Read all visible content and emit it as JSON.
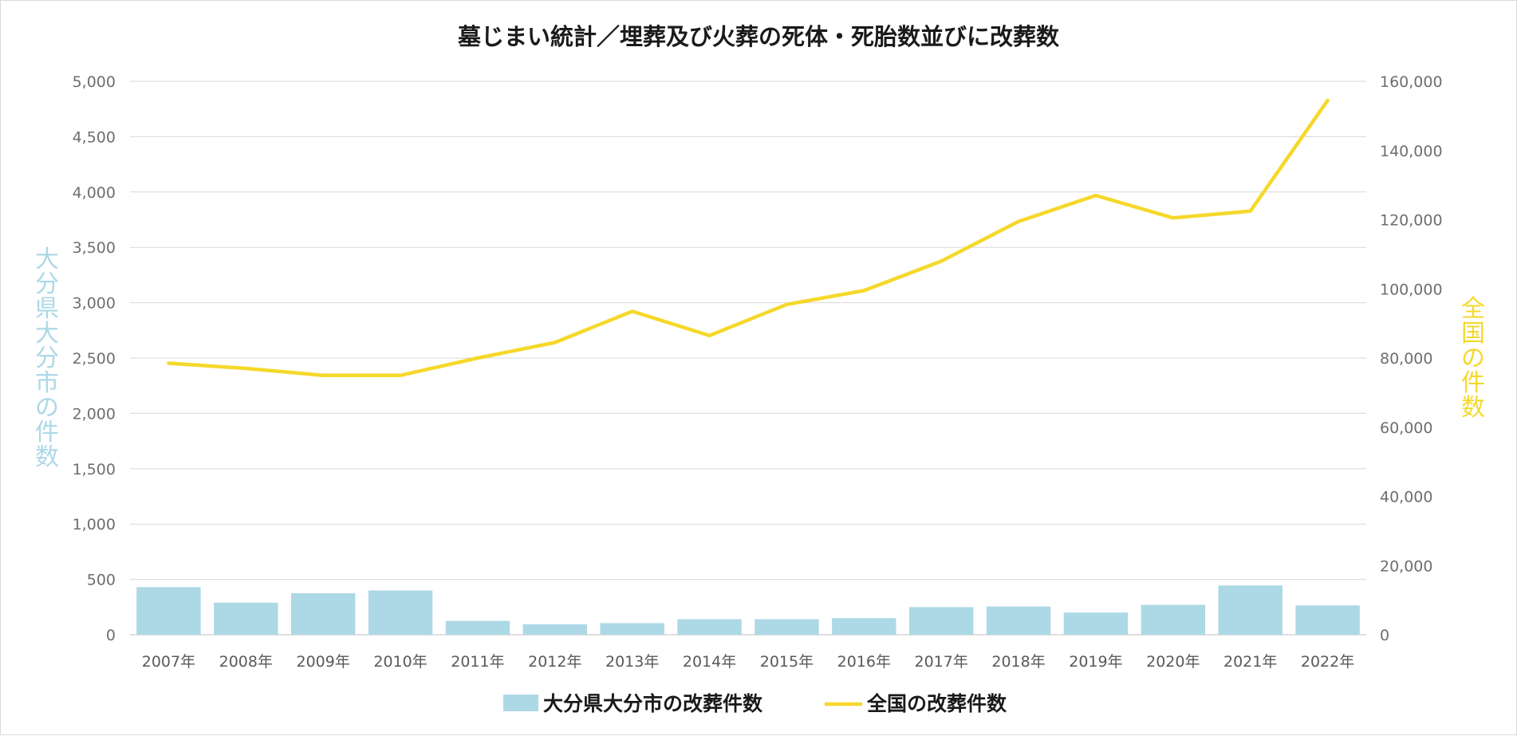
{
  "chart_data": {
    "type": "bar+line",
    "title": "墓じまい統計／埋葬及び火葬の死体・死胎数並びに改葬数",
    "categories": [
      "2007年",
      "2008年",
      "2009年",
      "2010年",
      "2011年",
      "2012年",
      "2013年",
      "2014年",
      "2015年",
      "2016年",
      "2017年",
      "2018年",
      "2019年",
      "2020年",
      "2021年",
      "2022年"
    ],
    "series": [
      {
        "name": "大分県大分市の改葬件数",
        "type": "bar",
        "axis": "left",
        "color": "#add8e6",
        "values": [
          430,
          290,
          375,
          400,
          125,
          95,
          105,
          140,
          140,
          150,
          250,
          255,
          200,
          270,
          445,
          265
        ]
      },
      {
        "name": "全国の改葬件数",
        "type": "line",
        "axis": "right",
        "color": "#f5d82a",
        "values": [
          78500,
          77000,
          75000,
          75000,
          80000,
          84500,
          93500,
          86500,
          95500,
          99500,
          108000,
          119500,
          127000,
          120500,
          122500,
          154500
        ]
      }
    ],
    "y_left": {
      "label": "大分県大分市の件数",
      "min": 0,
      "max": 5000,
      "step": 500,
      "ticks": [
        "0",
        "500",
        "1,000",
        "1,500",
        "2,000",
        "2,500",
        "3,000",
        "3,500",
        "4,000",
        "4,500",
        "5,000"
      ],
      "color": "#add8e6"
    },
    "y_right": {
      "label": "全国の件数",
      "min": 0,
      "max": 160000,
      "step": 20000,
      "ticks": [
        "0",
        "20,000",
        "40,000",
        "60,000",
        "80,000",
        "100,000",
        "120,000",
        "140,000",
        "160,000"
      ],
      "color": "#f5d82a"
    },
    "grid": true,
    "legend": "bottom"
  }
}
